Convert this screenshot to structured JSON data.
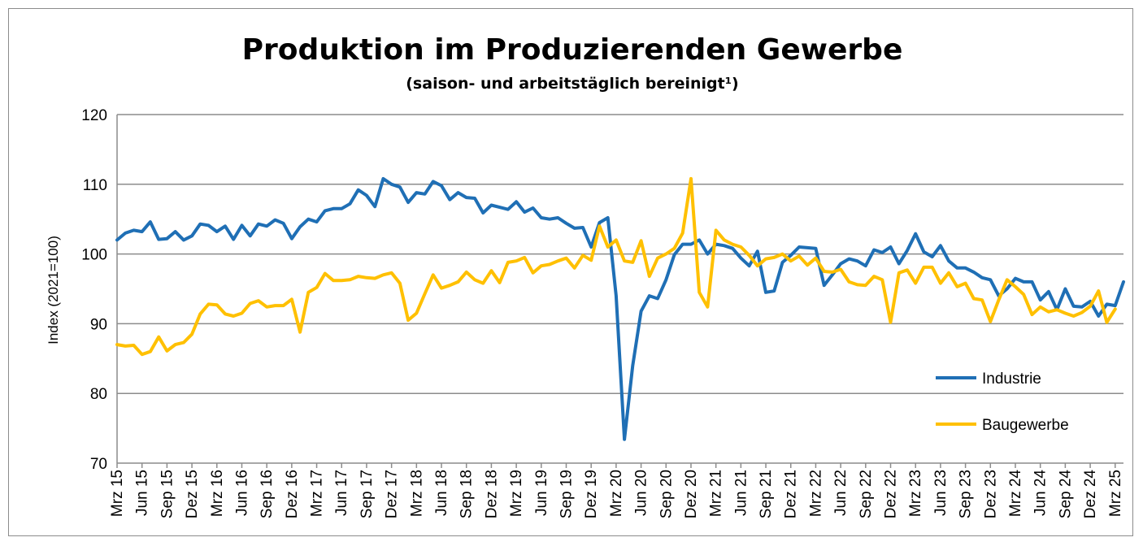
{
  "chart_data": {
    "type": "line",
    "title": "Produktion im Produzierenden Gewerbe",
    "subtitle": "(saison- und arbeitstäglich bereinigt¹)",
    "ylabel": "Index (2021=100)",
    "xlabel": "",
    "ylim": [
      70,
      120
    ],
    "yticks": [
      70,
      80,
      90,
      100,
      110,
      120
    ],
    "grid": "horizontal",
    "legend_position": "bottom-right",
    "x_tick_labels": [
      "Mrz 15",
      "Jun 15",
      "Sep 15",
      "Dez 15",
      "Mrz 16",
      "Jun 16",
      "Sep 16",
      "Dez 16",
      "Mrz 17",
      "Jun 17",
      "Sep 17",
      "Dez 17",
      "Mrz 18",
      "Jun 18",
      "Sep 18",
      "Dez 18",
      "Mrz 19",
      "Jun 19",
      "Sep 19",
      "Dez 19",
      "Mrz 20",
      "Jun 20",
      "Sep 20",
      "Dez 20",
      "Mrz 21",
      "Jun 21",
      "Sep 21",
      "Dez 21",
      "Mrz 22",
      "Jun 22",
      "Sep 22",
      "Dez 22",
      "Mrz 23",
      "Jun 23",
      "Sep 23",
      "Dez 23",
      "Mrz 24",
      "Jun 24",
      "Sep 24",
      "Dez 24",
      "Mrz 25"
    ],
    "x_tick_step_months": 3,
    "series": [
      {
        "name": "Industrie",
        "color": "#1f6fb5",
        "values": [
          102.0,
          103.0,
          103.4,
          103.2,
          104.6,
          102.1,
          102.2,
          103.2,
          102.0,
          102.6,
          104.3,
          104.1,
          103.2,
          104.0,
          102.1,
          104.1,
          102.6,
          104.3,
          104.0,
          104.9,
          104.4,
          102.2,
          103.9,
          105.0,
          104.6,
          106.2,
          106.5,
          106.5,
          107.2,
          109.2,
          108.4,
          106.8,
          110.8,
          110.0,
          109.6,
          107.4,
          108.8,
          108.6,
          110.4,
          109.8,
          107.8,
          108.8,
          108.1,
          108.0,
          105.9,
          107.0,
          106.7,
          106.4,
          107.5,
          106.0,
          106.6,
          105.2,
          105.0,
          105.2,
          104.4,
          103.7,
          103.8,
          101.0,
          104.5,
          105.2,
          94.0,
          73.4,
          84.0,
          91.8,
          94.0,
          93.6,
          96.3,
          99.9,
          101.4,
          101.4,
          102.0,
          100.0,
          101.4,
          101.2,
          100.8,
          99.4,
          98.3,
          100.4,
          94.5,
          94.7,
          98.8,
          99.8,
          101.0,
          100.9,
          100.8,
          95.5,
          97.0,
          98.6,
          99.3,
          99.0,
          98.3,
          100.6,
          100.2,
          101.0,
          98.6,
          100.5,
          102.9,
          100.3,
          99.6,
          101.2,
          99.0,
          98.0,
          98.0,
          97.4,
          96.6,
          96.3,
          94.0,
          95.0,
          96.5,
          96.0,
          96.0,
          93.4,
          94.6,
          92.0,
          95.0,
          92.5,
          92.4,
          93.2,
          91.1,
          92.8,
          92.6,
          96.0
        ]
      },
      {
        "name": "Baugewerbe",
        "color": "#ffc000",
        "values": [
          87.0,
          86.8,
          86.9,
          85.6,
          86.0,
          88.1,
          86.1,
          87.0,
          87.3,
          88.5,
          91.4,
          92.8,
          92.7,
          91.4,
          91.1,
          91.5,
          92.9,
          93.3,
          92.4,
          92.6,
          92.6,
          93.5,
          88.8,
          94.5,
          95.2,
          97.2,
          96.2,
          96.2,
          96.3,
          96.8,
          96.6,
          96.5,
          97.0,
          97.3,
          95.8,
          90.5,
          91.5,
          94.3,
          97.0,
          95.1,
          95.5,
          96.0,
          97.4,
          96.3,
          95.8,
          97.6,
          95.9,
          98.8,
          99.0,
          99.5,
          97.3,
          98.3,
          98.5,
          99.0,
          99.4,
          98.0,
          99.8,
          99.1,
          104.0,
          101.0,
          102.0,
          99.0,
          98.8,
          101.9,
          96.8,
          99.4,
          100.0,
          100.8,
          103.0,
          110.8,
          94.5,
          92.4,
          103.4,
          102.0,
          101.4,
          101.0,
          99.8,
          98.3,
          99.3,
          99.5,
          100.0,
          99.0,
          99.7,
          98.4,
          99.4,
          97.5,
          97.4,
          97.8,
          96.0,
          95.6,
          95.5,
          96.8,
          96.3,
          90.2,
          97.3,
          97.7,
          95.8,
          98.1,
          98.1,
          95.8,
          97.3,
          95.3,
          95.8,
          93.6,
          93.4,
          90.3,
          93.4,
          96.3,
          95.3,
          94.2,
          91.3,
          92.4,
          91.7,
          92.0,
          91.5,
          91.1,
          91.6,
          92.5,
          94.7,
          90.2,
          92.1
        ]
      }
    ]
  }
}
